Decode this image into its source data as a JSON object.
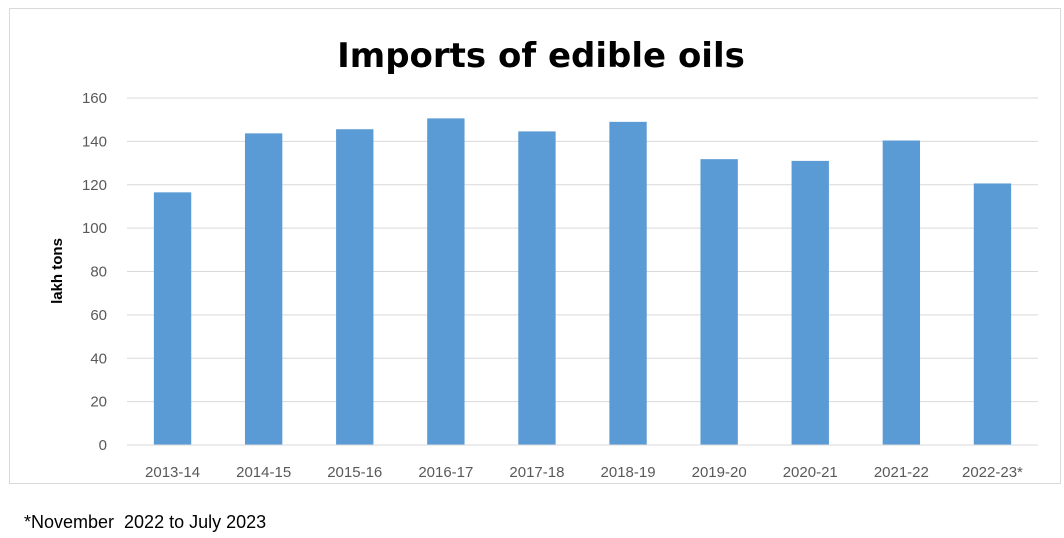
{
  "chart_data": {
    "type": "bar",
    "title": "Imports of edible oils",
    "ylabel": "lakh tons",
    "xlabel": "",
    "categories": [
      "2013-14",
      "2014-15",
      "2015-16",
      "2016-17",
      "2017-18",
      "2018-19",
      "2019-20",
      "2020-21",
      "2021-22",
      "2022-23*"
    ],
    "values": [
      116.5,
      143.7,
      145.6,
      150.6,
      144.6,
      149.0,
      131.8,
      131.0,
      140.4,
      120.6
    ],
    "ylim": [
      0,
      160
    ],
    "yticks": [
      0,
      20,
      40,
      60,
      80,
      100,
      120,
      140,
      160
    ],
    "grid": true,
    "bar_color": "#5b9bd5",
    "grid_color": "#d9d9d9"
  },
  "footnote": "*November  2022 to July 2023"
}
